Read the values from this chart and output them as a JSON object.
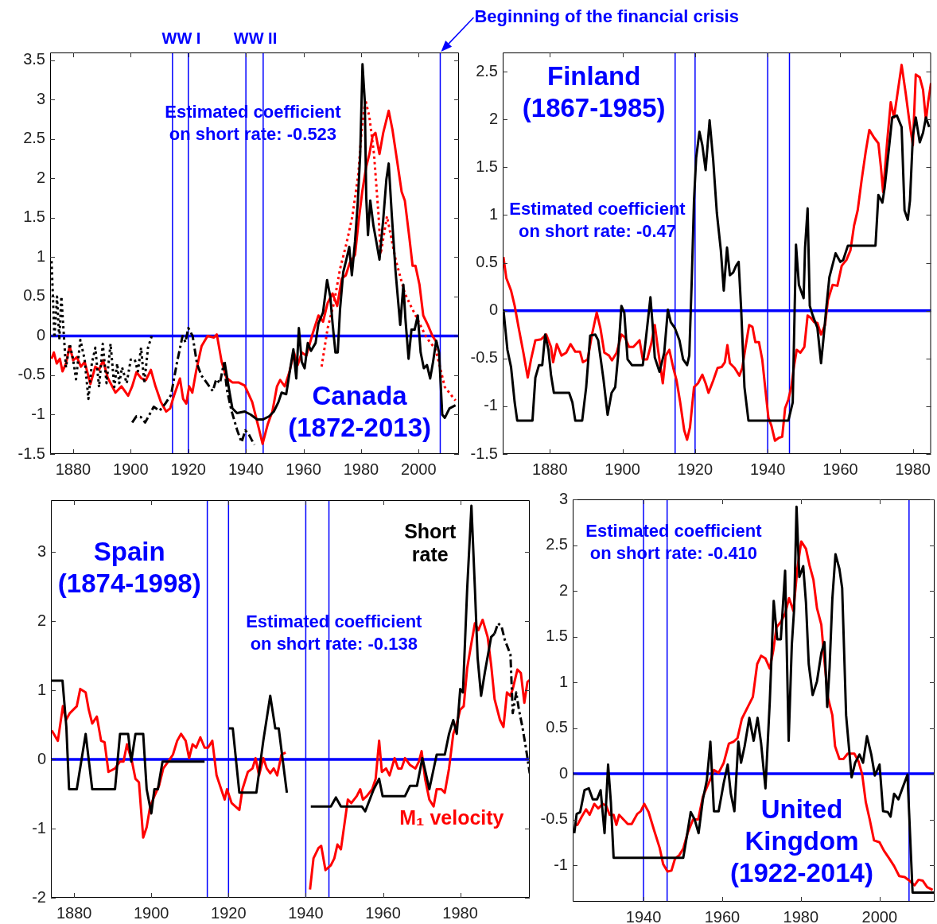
{
  "chart_data": [
    {
      "type": "line",
      "title": "Canada (1872-2013)",
      "annotations": [
        "WW I",
        "WW II",
        {
          "text": "Beginning of the financial crisis",
          "x": 2007.5,
          "y": 3.6
        },
        "Estimated coefficient on short rate: -0.523"
      ],
      "xlim": [
        1872,
        2014
      ],
      "xticks": [
        1880,
        1900,
        1920,
        1940,
        1960,
        1980,
        2000
      ],
      "ylim": [
        -1.5,
        3.6
      ],
      "yticks": [
        -1.5,
        -1,
        -0.5,
        0,
        0.5,
        1,
        1.5,
        2,
        2.5,
        3,
        3.5
      ],
      "ref_lines": [
        {
          "axis": "y",
          "value": 0,
          "color": "#0000ff"
        },
        {
          "axis": "x",
          "value": 1914.5,
          "color": "#0000ff"
        },
        {
          "axis": "x",
          "value": 1920,
          "color": "#0000ff"
        },
        {
          "axis": "x",
          "value": 1940,
          "color": "#0000ff"
        },
        {
          "axis": "x",
          "value": 1946,
          "color": "#0000ff"
        },
        {
          "axis": "x",
          "value": 2007.5,
          "color": "#0000ff"
        }
      ],
      "series": [
        {
          "color": "#000000",
          "line_style": "dotted",
          "x": [
            1872.5,
            1873.5,
            1874.4,
            1875.2,
            1875.9,
            1877.5,
            1878.8,
            1880,
            1881,
            1882.5,
            1884,
            1885.3,
            1886.5,
            1887.7,
            1889,
            1890.3,
            1891.6,
            1893,
            1894.3,
            1895.3,
            1896,
            1897,
            1898.6,
            1900,
            1901.4,
            1902.5,
            1903.6,
            1904.7,
            1906,
            1907.3
          ],
          "values": [
            0.95,
            -0.02,
            0.5,
            -0.05,
            0.5,
            -0.4,
            -0.1,
            -0.3,
            -0.55,
            -0.05,
            -0.3,
            -0.8,
            -0.35,
            -0.15,
            -0.65,
            -0.1,
            -0.6,
            -0.1,
            -0.65,
            -0.35,
            -0.6,
            -0.4,
            -0.6,
            -0.3,
            -0.3,
            -0.45,
            -0.15,
            -0.6,
            -0.15,
            0.0
          ]
        },
        {
          "color": "#000000",
          "line_style": "dashed",
          "x": [
            1900.5,
            1902,
            1903.5,
            1905,
            1906.5,
            1908,
            1910,
            1912,
            1914,
            1916,
            1918,
            1919,
            1920,
            1921.5,
            1923,
            1924.5,
            1926.5,
            1928.5,
            1929.7,
            1931,
            1932.3,
            1933.5,
            1935,
            1937,
            1938.5,
            1939.8,
            1941,
            1942,
            1943
          ],
          "values": [
            -1.1,
            -1.02,
            -1.03,
            -1.1,
            -1.0,
            -0.9,
            -0.95,
            -0.86,
            -0.75,
            -0.35,
            0.0,
            -0.08,
            0.1,
            0.0,
            -0.35,
            -0.5,
            -0.6,
            -0.7,
            -0.55,
            -0.6,
            -0.35,
            -0.7,
            -0.95,
            -1.2,
            -1.35,
            -1.2,
            -1.25,
            -1.32,
            -1.38
          ]
        },
        {
          "color": "#000000",
          "line_style": "solid",
          "x": [
            1932.6,
            1934.2,
            1935.3,
            1936.9,
            1939.6,
            1941.7,
            1943.9,
            1946,
            1948.1,
            1949.7,
            1951.3,
            1952.4,
            1954,
            1955.6,
            1956.5,
            1957.5,
            1958.4,
            1959.4,
            1960.4,
            1961.5,
            1962.6,
            1964.2,
            1965.2,
            1966.8,
            1968.2,
            1969.3,
            1970.1,
            1971.1,
            1971.9,
            1972.7,
            1973.8,
            1974.9,
            1975.9,
            1976.8,
            1977.9,
            1978.9,
            1979.7,
            1980.5,
            1981.3,
            1981.8,
            1982.4,
            1983.2,
            1984.3,
            1985.3,
            1986.4,
            1987.7,
            1988.8,
            1989.6,
            1990.7,
            1992,
            1993.6,
            1994.7,
            1995.4,
            1996.5,
            1997.5,
            1998.6,
            1999.7,
            2000.7,
            2001.8,
            2002.9,
            2004,
            2005,
            2006.1,
            2007.1,
            2008.2,
            2009.1,
            2010.7,
            2012.8
          ],
          "values": [
            -0.33,
            -0.69,
            -0.92,
            -0.98,
            -0.96,
            -1.0,
            -1.06,
            -1.06,
            -1.02,
            -0.96,
            -0.84,
            -0.72,
            -0.74,
            -0.37,
            -0.17,
            -0.54,
            0.1,
            -0.33,
            -0.41,
            -0.09,
            -0.19,
            -0.09,
            0.16,
            0.3,
            0.71,
            0.5,
            0.16,
            -0.21,
            -0.21,
            0.34,
            0.81,
            0.97,
            1.13,
            0.77,
            1.2,
            1.72,
            2.31,
            3.45,
            2.98,
            1.76,
            1.28,
            1.72,
            1.4,
            1.2,
            0.97,
            1.48,
            1.99,
            2.19,
            1.52,
            0.81,
            0.14,
            0.65,
            0.22,
            -0.29,
            0.08,
            0.08,
            0.26,
            -0.21,
            -0.41,
            -0.37,
            -0.54,
            -0.33,
            -0.06,
            -0.21,
            -1.0,
            -1.04,
            -0.92,
            -0.88
          ]
        },
        {
          "color": "#ff0000",
          "line_style": "solid",
          "x": [
            1872.5,
            1873.3,
            1874.3,
            1875.4,
            1876.3,
            1877.5,
            1878.8,
            1880,
            1881.3,
            1882.7,
            1884,
            1886,
            1887.7,
            1889,
            1890.4,
            1892,
            1894.7,
            1896.8,
            1899.1,
            1900.5,
            1902,
            1903.7,
            1905.3,
            1907,
            1908.6,
            1910.5,
            1912.3,
            1913.7,
            1915,
            1917.1,
            1918.2,
            1919.3,
            1920.3,
            1921.4,
            1922.7,
            1924.6,
            1926.7,
            1928.9,
            1929.9,
            1931.6,
            1933.2,
            1935.3,
            1937.4,
            1939.6,
            1942.2,
            1944.4,
            1945.8,
            1947.6,
            1949.2,
            1950.8,
            1951.9,
            1953.5,
            1955.1,
            1956.7,
            1958,
            1959.4,
            1961,
            1963.1,
            1965.2,
            1966.8,
            1968.4,
            1970.1,
            1971.7,
            1973.3,
            1974.7,
            1976.1,
            1977.9,
            1979.1,
            1980.4,
            1981.8,
            1982.9,
            1984,
            1985,
            1986.4,
            1987.7,
            1989.6,
            1990.9,
            1992.5,
            1994.1,
            1995.2,
            1996.8,
            1997.9,
            1998.9,
            2000.3,
            2001.6,
            2003.2,
            2004.8,
            2006.4
          ],
          "values": [
            -0.29,
            -0.21,
            -0.35,
            -0.29,
            -0.45,
            -0.35,
            -0.13,
            -0.31,
            -0.27,
            -0.39,
            -0.33,
            -0.61,
            -0.39,
            -0.43,
            -0.31,
            -0.53,
            -0.72,
            -0.64,
            -0.76,
            -0.64,
            -0.46,
            -0.54,
            -0.56,
            -0.43,
            -0.64,
            -0.84,
            -0.96,
            -0.92,
            -0.76,
            -0.54,
            -0.8,
            -0.86,
            -0.64,
            -0.72,
            -0.45,
            -0.13,
            0.0,
            -0.02,
            0.02,
            -0.33,
            -0.53,
            -0.59,
            -0.59,
            -0.63,
            -0.84,
            -1.16,
            -1.37,
            -1.12,
            -0.96,
            -0.64,
            -0.56,
            -0.64,
            -0.46,
            -0.21,
            -0.37,
            -0.21,
            -0.25,
            0.02,
            0.26,
            0.18,
            0.42,
            0.54,
            0.38,
            0.73,
            0.77,
            0.93,
            1.03,
            1.44,
            1.83,
            2.15,
            2.31,
            2.54,
            2.58,
            2.31,
            2.58,
            2.86,
            2.62,
            2.23,
            1.83,
            1.72,
            1.24,
            0.89,
            0.89,
            0.65,
            0.26,
            0.14,
            0.0,
            -0.09
          ]
        },
        {
          "color": "#ff0000",
          "line_style": "dotted",
          "x": [
            1966.3,
            1968.4,
            1970.6,
            1972.7,
            1974.9,
            1977,
            1979.1,
            1980.2,
            1981.5,
            1982.9,
            1984.5,
            1986.1,
            1986.8,
            1989,
            1992,
            1995.2,
            1997.3,
            1999.5,
            2002.7,
            2005.9,
            2009.1,
            2012.8
          ],
          "values": [
            -0.39,
            0.1,
            0.42,
            0.85,
            1.17,
            1.52,
            2.07,
            2.62,
            3.0,
            2.78,
            2.31,
            1.52,
            1.04,
            1.52,
            0.97,
            0.54,
            0.38,
            0.22,
            -0.02,
            -0.17,
            -0.65,
            -0.82
          ]
        }
      ]
    },
    {
      "type": "line",
      "title": "Finland (1867-1985)",
      "annotations": [
        "Estimated coefficient on short rate: -0.47"
      ],
      "xlim": [
        1867,
        1985
      ],
      "xticks": [
        1880,
        1900,
        1920,
        1940,
        1960,
        1980
      ],
      "ylim": [
        -1.5,
        2.7
      ],
      "yticks": [
        -1.5,
        -1,
        -0.5,
        0,
        0.5,
        1,
        1.5,
        2,
        2.5
      ],
      "ref_lines": [
        {
          "axis": "y",
          "value": 0,
          "color": "#0000ff"
        },
        {
          "axis": "x",
          "value": 1914.5,
          "color": "#0000ff"
        },
        {
          "axis": "x",
          "value": 1920,
          "color": "#0000ff"
        },
        {
          "axis": "x",
          "value": 1940,
          "color": "#0000ff"
        },
        {
          "axis": "x",
          "value": 1946,
          "color": "#0000ff"
        }
      ],
      "series": [
        {
          "color": "#000000",
          "line_style": "solid",
          "x": [
            1867.2,
            1868.3,
            1869.3,
            1870.3,
            1871,
            1875.2,
            1876,
            1877,
            1877.9,
            1878.7,
            1879.6,
            1880.3,
            1881.1,
            1885.3,
            1886.2,
            1887,
            1888.9,
            1890,
            1891.1,
            1892.5,
            1893.3,
            1894.8,
            1895.9,
            1897,
            1898,
            1898.8,
            1899.7,
            1900.5,
            1901.4,
            1902.6,
            1905.6,
            1906.4,
            1907.7,
            1908.3,
            1908.9,
            1910.2,
            1911.5,
            1912.5,
            1913.3,
            1914.4,
            1915.7,
            1916.7,
            1917.8,
            1918.4,
            1919.1,
            1919.7,
            1920.3,
            1921.2,
            1922,
            1922.9,
            1924,
            1925,
            1926,
            1927.1,
            1927.9,
            1928.8,
            1929.6,
            1930.5,
            1931.3,
            1932,
            1932.7,
            1933.6,
            1934.7,
            1945.7,
            1946.9,
            1947.8,
            1948.6,
            1949.9,
            1950.3,
            1951,
            1951.6,
            1952.4,
            1953.7,
            1954.7,
            1955.4,
            1956.2,
            1957,
            1958.7,
            1960,
            1960.8,
            1962.1,
            1969.7,
            1970.5,
            1971.6,
            1972.2,
            1973.5,
            1974.3,
            1975.6,
            1976.9,
            1977.7,
            1978.6,
            1979.2,
            1980,
            1980.8,
            1981.9,
            1982.8,
            1983.6,
            1984.5
          ],
          "values": [
            0.01,
            -0.41,
            -0.59,
            -0.96,
            -1.15,
            -1.15,
            -0.7,
            -0.57,
            -0.57,
            -0.25,
            -0.41,
            -0.67,
            -0.86,
            -0.86,
            -0.96,
            -1.15,
            -1.15,
            -0.8,
            -0.26,
            -0.25,
            -0.31,
            -0.73,
            -1.09,
            -0.86,
            -0.8,
            -0.47,
            0.05,
            -0.02,
            -0.51,
            -0.57,
            -0.57,
            -0.31,
            0.14,
            -0.15,
            -0.49,
            -0.64,
            -0.44,
            0.01,
            -0.12,
            -0.18,
            -0.31,
            -0.51,
            -0.57,
            -0.47,
            0.34,
            1.15,
            1.6,
            1.87,
            1.73,
            1.47,
            1.99,
            1.57,
            1.02,
            0.63,
            0.21,
            0.66,
            0.37,
            0.4,
            0.47,
            0.51,
            0.01,
            -0.8,
            -1.15,
            -1.15,
            -0.96,
            0.69,
            0.27,
            0.13,
            0.66,
            1.07,
            0.05,
            -0.05,
            -0.18,
            -0.55,
            -0.28,
            0.05,
            0.35,
            0.6,
            0.51,
            0.53,
            0.68,
            0.68,
            1.21,
            1.13,
            1.28,
            1.73,
            2.02,
            2.04,
            1.92,
            1.05,
            0.95,
            1.15,
            1.83,
            2.02,
            1.76,
            1.86,
            2.02,
            1.92
          ]
        },
        {
          "color": "#ff0000",
          "line_style": "solid",
          "x": [
            1867.2,
            1868,
            1869.3,
            1870.3,
            1871.4,
            1872.7,
            1873.9,
            1874.8,
            1876,
            1877.6,
            1879,
            1880.3,
            1880.9,
            1881.9,
            1883.2,
            1884.5,
            1885.7,
            1887,
            1888.3,
            1889.1,
            1890.4,
            1891.6,
            1892.9,
            1893.9,
            1895,
            1896.3,
            1897.1,
            1898.4,
            1899.7,
            1900.7,
            1901.8,
            1903,
            1904.7,
            1905.6,
            1906.8,
            1907.9,
            1908.9,
            1909.8,
            1911.1,
            1911.9,
            1912.9,
            1914,
            1914.9,
            1915.9,
            1917,
            1917.8,
            1918.6,
            1919.7,
            1920.8,
            1922,
            1922.9,
            1923.7,
            1925,
            1926.2,
            1927.3,
            1928.2,
            1928.9,
            1929.6,
            1930.9,
            1932.2,
            1933,
            1933.9,
            1934.9,
            1935.8,
            1936.6,
            1937.6,
            1938.5,
            1939.3,
            1940.2,
            1941,
            1942,
            1943.1,
            1944,
            1944.8,
            1945.7,
            1946.5,
            1947.3,
            1948,
            1949,
            1950.1,
            1951,
            1952,
            1952.8,
            1953.7,
            1954.7,
            1955.8,
            1956.6,
            1957.9,
            1959.2,
            1960.4,
            1961.7,
            1962.8,
            1963.8,
            1964.8,
            1965.9,
            1967,
            1968,
            1969.3,
            1970.5,
            1971.2,
            1971.8,
            1972.9,
            1973.9,
            1974.8,
            1975.8,
            1976.9,
            1978,
            1979,
            1980,
            1980.8,
            1981.9,
            1982.8,
            1983.6,
            1984.2,
            1985
          ],
          "values": [
            0.56,
            0.34,
            0.21,
            0.05,
            -0.18,
            -0.44,
            -0.7,
            -0.51,
            -0.31,
            -0.3,
            -0.25,
            -0.38,
            -0.54,
            -0.35,
            -0.47,
            -0.44,
            -0.35,
            -0.43,
            -0.43,
            -0.54,
            -0.51,
            -0.25,
            -0.02,
            -0.18,
            -0.44,
            -0.47,
            -0.52,
            -0.44,
            -0.25,
            -0.28,
            -0.38,
            -0.38,
            -0.31,
            -0.51,
            -0.51,
            -0.35,
            -0.15,
            -0.41,
            -0.76,
            -0.47,
            -0.41,
            -0.6,
            -0.73,
            -0.96,
            -1.25,
            -1.35,
            -1.22,
            -0.8,
            -0.76,
            -0.67,
            -0.76,
            -0.86,
            -0.73,
            -0.6,
            -0.59,
            -0.54,
            -0.36,
            -0.55,
            -0.6,
            -0.68,
            -0.6,
            -0.38,
            -0.15,
            -0.17,
            -0.33,
            -0.33,
            -0.51,
            -0.8,
            -1.12,
            -1.2,
            -1.36,
            -1.33,
            -1.32,
            -1.02,
            -0.93,
            -0.8,
            -0.57,
            -0.41,
            -0.44,
            -0.38,
            -0.05,
            -0.08,
            -0.12,
            -0.13,
            -0.25,
            -0.15,
            0.11,
            0.27,
            0.26,
            0.47,
            0.53,
            0.63,
            0.89,
            1.05,
            1.37,
            1.66,
            1.89,
            1.81,
            1.75,
            1.5,
            1.24,
            1.76,
            2.18,
            2.02,
            2.28,
            2.57,
            2.28,
            1.99,
            1.73,
            2.47,
            2.44,
            2.31,
            1.99,
            2.18,
            2.38
          ]
        }
      ]
    },
    {
      "type": "line",
      "title": "Spain (1874-1998)",
      "annotations": [
        "Estimated coefficient on short rate: -0.138"
      ],
      "xlim": [
        1874,
        1998
      ],
      "xticks": [
        1880,
        1900,
        1920,
        1940,
        1960,
        1980
      ],
      "ylim": [
        -2,
        3.75
      ],
      "yticks": [
        -2,
        -1,
        0,
        1,
        2,
        3
      ],
      "ref_lines": [
        {
          "axis": "y",
          "value": 0,
          "color": "#0000ff"
        },
        {
          "axis": "x",
          "value": 1914.5,
          "color": "#0000ff"
        },
        {
          "axis": "x",
          "value": 1920,
          "color": "#0000ff"
        },
        {
          "axis": "x",
          "value": 1940,
          "color": "#0000ff"
        },
        {
          "axis": "x",
          "value": 1946,
          "color": "#0000ff"
        }
      ],
      "series": [
        {
          "name": "Short rate",
          "color": "#000000",
          "line_style": "solid",
          "x": [
            1874.2,
            1877,
            1878,
            1878.7,
            1880.7,
            1883,
            1884.7,
            1890.6,
            1891.9,
            1894,
            1894.8,
            1895.9,
            1897.9,
            1898.8,
            1900,
            1900.8,
            1901.7,
            1902.9,
            1904,
            1913.8,
            1917,
            1920.1,
            1921.1,
            1922.8,
            1927.2,
            1929,
            1930.8,
            1932.1,
            1933,
            1935.1,
            1938,
            1941.3,
            1946.5,
            1947.8,
            1949.1,
            1954.5,
            1955.4,
            1957.6,
            1959,
            1959.9,
            1965.7,
            1967,
            1968.8,
            1970.2,
            1972,
            1973.9,
            1976,
            1977.1,
            1978.2,
            1979.1,
            1980,
            1980.7,
            1981.8,
            1982.9,
            1983.8,
            1984.5,
            1985.4,
            1986.4,
            1988,
            1988.9
          ],
          "values": [
            1.14,
            1.14,
            0.47,
            -0.43,
            -0.43,
            0.37,
            -0.43,
            -0.43,
            0.37,
            0.37,
            -0.03,
            0.37,
            0.37,
            -0.43,
            -0.78,
            -0.43,
            -0.43,
            -0.03,
            -0.03,
            -0.03,
            null,
            0.45,
            0.45,
            -0.48,
            -0.48,
            0.27,
            0.92,
            0.45,
            0.45,
            -0.48,
            null,
            -0.68,
            -0.68,
            -0.55,
            -0.68,
            -0.68,
            -0.75,
            -0.43,
            -0.28,
            -0.53,
            -0.53,
            -0.38,
            -0.38,
            0.02,
            -0.43,
            0.07,
            0.07,
            0.37,
            0.57,
            0.37,
            1.02,
            0.97,
            2.47,
            3.67,
            2.47,
            1.47,
            0.92,
            1.27,
            1.77,
            1.82
          ]
        },
        {
          "color": "#000000",
          "line_style": "dashed",
          "x": [
            1988.9,
            1989.8,
            1990.7,
            1991.6,
            1993,
            1993.6,
            1994.5,
            1995.2,
            1996.1,
            1997,
            1998
          ],
          "values": [
            1.82,
            1.97,
            1.92,
            1.72,
            1.52,
            0.67,
            0.97,
            0.72,
            0.47,
            0.17,
            -0.2
          ]
        },
        {
          "name": "M₁ velocity",
          "color": "#ff0000",
          "line_style": "solid",
          "x": [
            1874.2,
            1875.8,
            1877.1,
            1877.9,
            1878.9,
            1880.7,
            1881.6,
            1883,
            1883.8,
            1884.7,
            1885.9,
            1887,
            1887.9,
            1888.9,
            1890.6,
            1891.9,
            1892.8,
            1893.7,
            1895,
            1895.9,
            1896.8,
            1897.9,
            1898.8,
            1899.7,
            1900.8,
            1902,
            1903.1,
            1904.4,
            1905.6,
            1906.7,
            1907.7,
            1908.9,
            1909.8,
            1910.7,
            1911.6,
            1912.7,
            1913.8,
            1914.7,
            1915.8,
            1916.9,
            1918.1,
            1919,
            1919.6,
            1920.8,
            1922.8,
            1923.6,
            1925,
            1926.2,
            1927,
            1927.9,
            1929,
            1929.9,
            1930.8,
            1931.7,
            1932.6,
            1933.7,
            1934.8,
            1938,
            1941.1,
            1942,
            1943.3,
            1944,
            1945.1,
            1946.5,
            1947.4,
            1948.2,
            1949.1,
            1950.9,
            1951.8,
            1953.2,
            1954.1,
            1954.8,
            1955.8,
            1957.2,
            1958.1,
            1959,
            1959.7,
            1960.8,
            1961.7,
            1963,
            1963.9,
            1964.8,
            1965.7,
            1967,
            1968.4,
            1969.3,
            1970,
            1970.9,
            1972,
            1973.1,
            1973.9,
            1975.1,
            1976,
            1977.1,
            1978.2,
            1979.1,
            1980,
            1980.9,
            1981.8,
            1982.7,
            1983.8,
            1984.7,
            1985.8,
            1987.1,
            1988,
            1988.9,
            1990.3,
            1991.2,
            1992.1,
            1993,
            1993.6,
            1994.8,
            1995.7,
            1996.6,
            1997.4,
            1998
          ],
          "values": [
            0.42,
            0.27,
            0.77,
            0.57,
            0.67,
            0.77,
            1.02,
            0.97,
            0.72,
            0.52,
            0.62,
            0.27,
            0.25,
            -0.18,
            -0.13,
            -0.03,
            -0.03,
            0.22,
            -0.03,
            -0.28,
            -0.33,
            -1.13,
            -0.98,
            -0.68,
            -0.53,
            -0.38,
            -0.13,
            -0.03,
            0.07,
            0.27,
            0.37,
            0.27,
            0.02,
            0.22,
            0.17,
            0.32,
            0.17,
            0.17,
            0.27,
            -0.23,
            -0.43,
            -0.58,
            -0.43,
            -0.63,
            -0.73,
            -0.43,
            -0.18,
            -0.13,
            0.02,
            -0.23,
            0.02,
            -0.13,
            -0.2,
            -0.13,
            -0.23,
            0.07,
            0.1,
            null,
            -1.88,
            -1.43,
            -1.28,
            -1.25,
            -1.6,
            -1.53,
            -1.43,
            -1.23,
            -1.3,
            -0.58,
            -0.63,
            -0.53,
            -0.43,
            -0.58,
            -0.53,
            -0.43,
            -0.28,
            0.27,
            -0.18,
            -0.13,
            -0.23,
            0.02,
            -0.13,
            -0.13,
            0.02,
            -0.08,
            -0.13,
            -0.03,
            0.12,
            -0.28,
            -0.58,
            -0.68,
            -0.43,
            -0.43,
            -0.48,
            -0.13,
            0.37,
            0.52,
            0.72,
            0.77,
            1.32,
            1.62,
            1.97,
            1.87,
            2.02,
            1.77,
            1.37,
            0.87,
            0.57,
            0.47,
            0.97,
            0.92,
            1.02,
            1.3,
            1.25,
            0.82,
            1.12,
            1.15
          ]
        }
      ]
    },
    {
      "type": "line",
      "title": "United Kingdom (1922-2014)",
      "annotations": [
        "Estimated coefficient on short rate: -0.410"
      ],
      "xlim": [
        1922,
        2014
      ],
      "xticks": [
        1940,
        1960,
        1980,
        2000
      ],
      "ylim": [
        -1.4,
        3
      ],
      "yticks": [
        -1,
        -0.5,
        0,
        0.5,
        1,
        1.5,
        2,
        2.5,
        3
      ],
      "ref_lines": [
        {
          "axis": "y",
          "value": 0,
          "color": "#0000ff"
        },
        {
          "axis": "x",
          "value": 1940,
          "color": "#0000ff"
        },
        {
          "axis": "x",
          "value": 1946,
          "color": "#0000ff"
        },
        {
          "axis": "x",
          "value": 2007.5,
          "color": "#0000ff"
        }
      ],
      "series": [
        {
          "color": "#000000",
          "line_style": "solid",
          "x": [
            1922.4,
            1923,
            1923.9,
            1925,
            1926.1,
            1927.1,
            1928.2,
            1929.1,
            1930.1,
            1931,
            1931.7,
            1932.4,
            1950.1,
            1951,
            1952,
            1953,
            1954,
            1955.1,
            1956.1,
            1957,
            1957.9,
            1959.1,
            1960.4,
            1961.4,
            1962.2,
            1963.1,
            1964.1,
            1964.8,
            1965.7,
            1966.9,
            1968,
            1969,
            1969.9,
            1971,
            1972.1,
            1973.1,
            1974,
            1974.9,
            1976,
            1976.9,
            1977.7,
            1978.3,
            1978.9,
            1979.6,
            1980.6,
            1981.3,
            1982,
            1983,
            1984.1,
            1985.2,
            1986,
            1986.7,
            1987.3,
            1988,
            1988.8,
            1989.8,
            1990.5,
            1991.5,
            1992.2,
            1992.9,
            1993.8,
            1994.9,
            1995.8,
            1996.8,
            1997.9,
            1998.8,
            2000,
            2000.9,
            2002.1,
            2002.8,
            2003.7,
            2004.8,
            2005.8,
            2007.1,
            2008.4,
            2013.8
          ],
          "values": [
            -0.65,
            -0.44,
            -0.42,
            -0.18,
            -0.16,
            -0.28,
            -0.28,
            -0.18,
            -0.65,
            0.1,
            -0.31,
            -0.92,
            -0.92,
            -0.69,
            -0.42,
            -0.5,
            -0.65,
            -0.28,
            -0.07,
            0.35,
            -0.41,
            -0.41,
            -0.1,
            0.1,
            -0.22,
            -0.41,
            0.35,
            0.12,
            0.3,
            0.61,
            0.36,
            0.61,
            0.33,
            -0.16,
            0.79,
            1.89,
            1.47,
            1.47,
            2.22,
            0.36,
            1.41,
            1.81,
            2.92,
            2.15,
            2.27,
            1.87,
            1.2,
            0.86,
            1.01,
            1.32,
            1.44,
            0.73,
            1.16,
            1.91,
            2.4,
            2.24,
            2.03,
            0.64,
            0.3,
            -0.04,
            0.12,
            0.21,
            0.12,
            0.41,
            0.21,
            -0.02,
            0.1,
            -0.41,
            -0.42,
            -0.47,
            -0.22,
            -0.28,
            -0.16,
            -0.01,
            -1.3,
            -1.3
          ]
        },
        {
          "color": "#ff0000",
          "line_style": "solid",
          "x": [
            1922.4,
            1923.2,
            1924.3,
            1925.4,
            1926.3,
            1927.5,
            1928.5,
            1929.6,
            1930.5,
            1931.4,
            1932.4,
            1933.1,
            1933.8,
            1934.9,
            1936,
            1937,
            1938.4,
            1939.3,
            1940.2,
            1941.3,
            1942.7,
            1944.1,
            1945,
            1946.1,
            1947.1,
            1948,
            1949.1,
            1950.1,
            1951.2,
            1952.6,
            1953.9,
            1955.1,
            1956.1,
            1957.2,
            1957.9,
            1959.1,
            1960.4,
            1961.7,
            1962.9,
            1963.9,
            1965,
            1966.4,
            1967.8,
            1968.9,
            1969.9,
            1971,
            1972.1,
            1973,
            1973.8,
            1974.9,
            1976,
            1977,
            1978.1,
            1979.1,
            1980.1,
            1981.3,
            1982.2,
            1983.2,
            1984.1,
            1985.2,
            1986,
            1986.9,
            1988,
            1988.7,
            1989.8,
            1990.8,
            1991.9,
            1993.6,
            1994.7,
            1995.6,
            1996.5,
            1997.5,
            1998.6,
            2000,
            2001.1,
            2002.5,
            2003.7,
            2005,
            2006.4,
            2007.6,
            2008.9,
            2009.9,
            2011,
            2012.1,
            2013.5
          ],
          "values": [
            -0.56,
            -0.56,
            -0.47,
            -0.39,
            -0.45,
            -0.33,
            -0.38,
            -0.33,
            -0.35,
            -0.45,
            -0.45,
            -0.56,
            -0.45,
            -0.5,
            -0.55,
            -0.55,
            -0.44,
            -0.41,
            -0.33,
            -0.42,
            -0.62,
            -0.81,
            -0.99,
            -1.07,
            -1.06,
            -0.93,
            -0.89,
            -0.82,
            -0.65,
            -0.5,
            -0.5,
            -0.25,
            -0.15,
            -0.04,
            0.04,
            0.01,
            0.12,
            0.33,
            0.35,
            0.39,
            0.6,
            0.72,
            0.84,
            1.2,
            1.29,
            1.26,
            1.15,
            1.35,
            1.6,
            1.66,
            1.75,
            1.92,
            1.78,
            2.24,
            2.54,
            2.46,
            2.28,
            2.12,
            1.81,
            1.63,
            1.23,
            0.83,
            0.64,
            0.3,
            0.16,
            0.16,
            0.22,
            0.22,
            0.13,
            -0.01,
            -0.31,
            -0.5,
            -0.73,
            -0.75,
            -0.84,
            -0.93,
            -1.01,
            -1.12,
            -1.13,
            -1.17,
            -1.22,
            -1.16,
            -1.17,
            -1.24,
            -1.27
          ]
        }
      ]
    }
  ]
}
